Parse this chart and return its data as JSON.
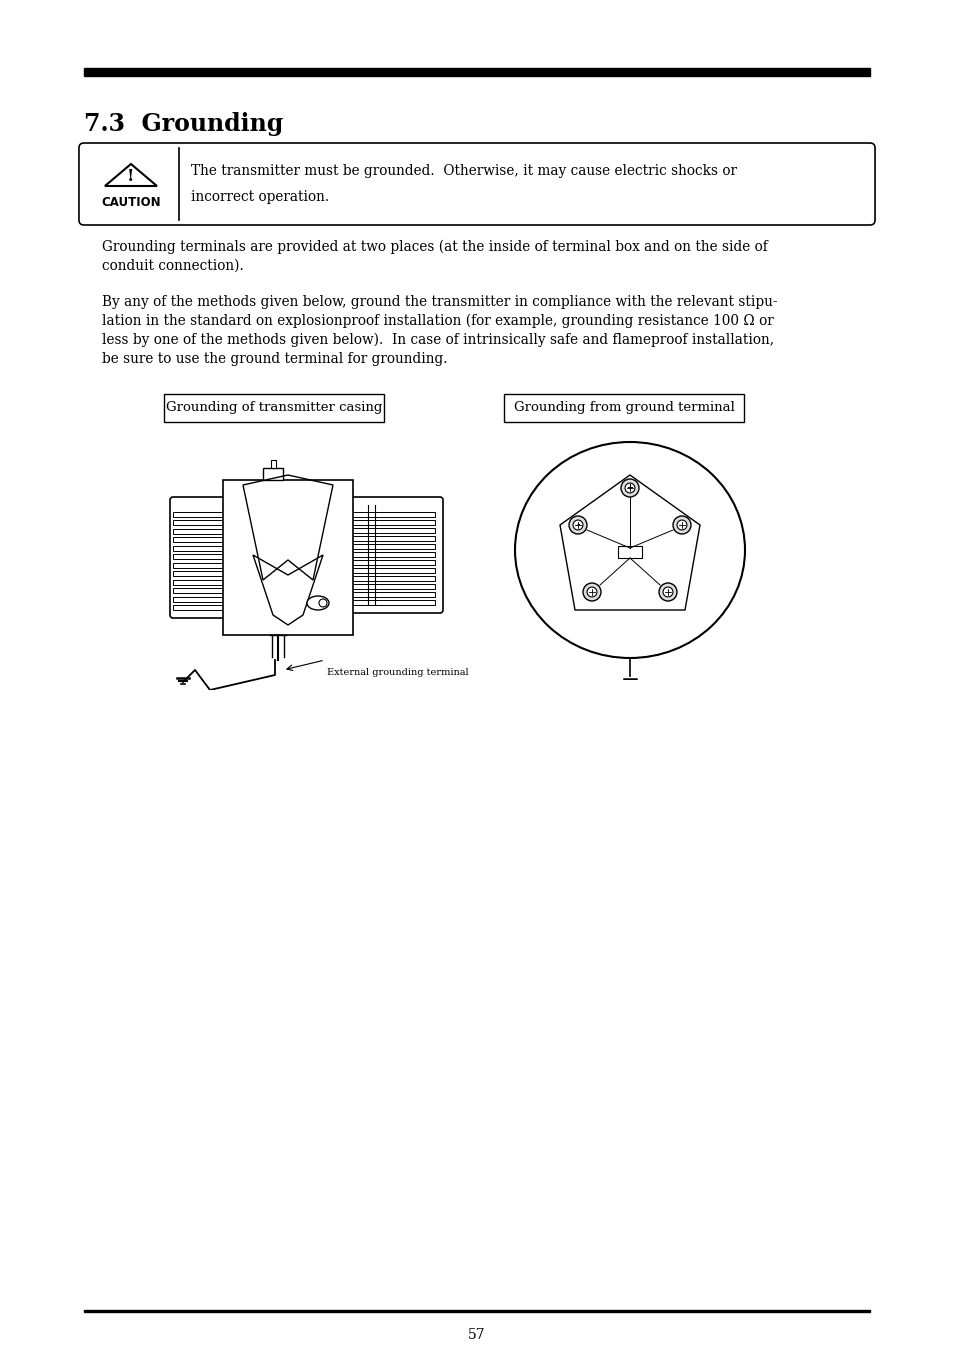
{
  "title": "7.3  Grounding",
  "caution_text_line1": "The transmitter must be grounded.  Otherwise, it may cause electric shocks or",
  "caution_text_line2": "incorrect operation.",
  "para1_line1": "Grounding terminals are provided at two places (at the inside of terminal box and on the side of",
  "para1_line2": "conduit connection).",
  "para2_line1": "By any of the methods given below, ground the transmitter in compliance with the relevant stipu-",
  "para2_line2": "lation in the standard on explosionproof installation (for example, grounding resistance 100 Ω or",
  "para2_line3": "less by one of the methods given below).  In case of intrinsically safe and flameproof installation,",
  "para2_line4": "be sure to use the ground terminal for grounding.",
  "box1_label": "Grounding of transmitter casing",
  "box2_label": "Grounding from ground terminal",
  "ext_label": "External grounding terminal",
  "page_number": "57",
  "background": "#ffffff",
  "text_color": "#000000",
  "ml": 0.088,
  "mr": 0.912
}
